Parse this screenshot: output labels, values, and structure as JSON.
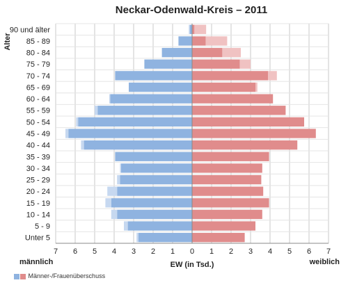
{
  "chart_data": {
    "type": "bar",
    "orientation": "horizontal",
    "subtype": "population-pyramid",
    "title": "Neckar-Odenwald-Kreis – 2011",
    "ylabel": "Alter",
    "xlabel": "EW (in Tsd.)",
    "left_label": "männlich",
    "right_label": "weiblich",
    "xlim": [
      -7,
      7
    ],
    "xticks": [
      7,
      6,
      5,
      4,
      3,
      2,
      1,
      0,
      1,
      2,
      3,
      4,
      5,
      6,
      7
    ],
    "categories": [
      "Unter 5",
      "5 - 9",
      "10 - 14",
      "15 - 19",
      "20 - 24",
      "25 - 29",
      "30 - 34",
      "35 - 39",
      "40 - 44",
      "45 - 49",
      "50 - 54",
      "55 - 59",
      "60 - 64",
      "65 - 69",
      "70 - 74",
      "75 - 79",
      "80 - 84",
      "85 - 89",
      "90 und älter"
    ],
    "series": [
      {
        "name": "männlich",
        "color": "#8fb3e0",
        "values": [
          2.75,
          3.3,
          3.85,
          4.15,
          3.85,
          3.7,
          3.65,
          3.95,
          5.55,
          6.35,
          5.85,
          4.85,
          4.2,
          3.25,
          3.95,
          2.45,
          1.55,
          0.7,
          0.12
        ]
      },
      {
        "name": "weiblich",
        "color": "#e08c8c",
        "values": [
          2.7,
          3.25,
          3.6,
          3.95,
          3.65,
          3.55,
          3.6,
          3.95,
          5.4,
          6.35,
          5.75,
          4.8,
          4.15,
          3.25,
          3.9,
          2.45,
          1.55,
          0.7,
          0.12
        ]
      },
      {
        "name": "Männer-/Frauenüberschuss",
        "side": "male-excess",
        "values": [
          0.1,
          0.2,
          0.3,
          0.3,
          0.5,
          0.15,
          0.05,
          0.0,
          0.15,
          0.15,
          0.1,
          0.15,
          0.05,
          0.0,
          0.0,
          0.0,
          0.0,
          0.0,
          0.05
        ]
      },
      {
        "name": "Männer-/Frauenüberschuss",
        "side": "female-excess",
        "values": [
          0.0,
          0.0,
          0.0,
          0.0,
          0.0,
          0.0,
          0.0,
          0.0,
          0.0,
          0.0,
          0.0,
          0.0,
          0.0,
          0.1,
          0.45,
          0.55,
          0.95,
          1.1,
          0.6
        ]
      }
    ],
    "colors": {
      "male": "#8fb3e0",
      "female": "#e08c8c",
      "male_excess": "#c6d8f0",
      "female_excess": "#f0c2c2",
      "grid": "#c8c8c8"
    },
    "grid": true,
    "legend": {
      "position": "bottom-left",
      "label": "Männer-/Frauenüberschuss",
      "colors": [
        "#8fb3e0",
        "#e08c8c"
      ]
    }
  }
}
